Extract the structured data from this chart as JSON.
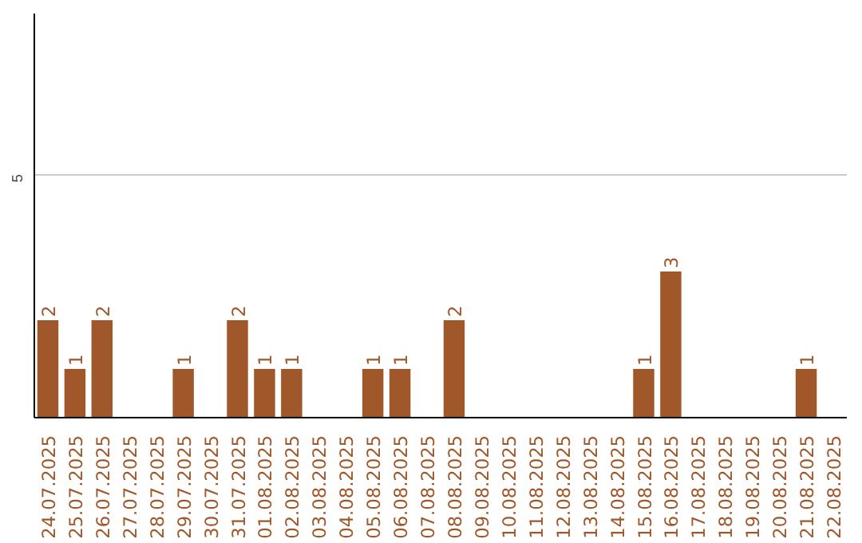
{
  "chart_data": {
    "type": "bar",
    "categories": [
      "24.07.2025",
      "25.07.2025",
      "26.07.2025",
      "27.07.2025",
      "28.07.2025",
      "29.07.2025",
      "30.07.2025",
      "31.07.2025",
      "01.08.2025",
      "02.08.2025",
      "03.08.2025",
      "04.08.2025",
      "05.08.2025",
      "06.08.2025",
      "07.08.2025",
      "08.08.2025",
      "09.08.2025",
      "10.08.2025",
      "11.08.2025",
      "12.08.2025",
      "13.08.2025",
      "14.08.2025",
      "15.08.2025",
      "16.08.2025",
      "17.08.2025",
      "18.08.2025",
      "19.08.2025",
      "20.08.2025",
      "21.08.2025",
      "22.08.2025"
    ],
    "values": [
      2,
      1,
      2,
      0,
      0,
      1,
      0,
      2,
      1,
      1,
      0,
      0,
      1,
      1,
      0,
      2,
      0,
      0,
      0,
      0,
      0,
      0,
      1,
      3,
      0,
      0,
      0,
      0,
      1,
      0
    ],
    "value_labels": [
      "2",
      "1",
      "2",
      null,
      null,
      "1",
      null,
      "2",
      "1",
      "1",
      null,
      null,
      "1",
      "1",
      null,
      "2",
      null,
      null,
      null,
      null,
      null,
      null,
      "1",
      "3",
      null,
      null,
      null,
      null,
      "1",
      null
    ],
    "color": "#a0572a",
    "ylim": [
      0,
      8.3
    ],
    "yticks": [
      5
    ],
    "grid": "y"
  }
}
